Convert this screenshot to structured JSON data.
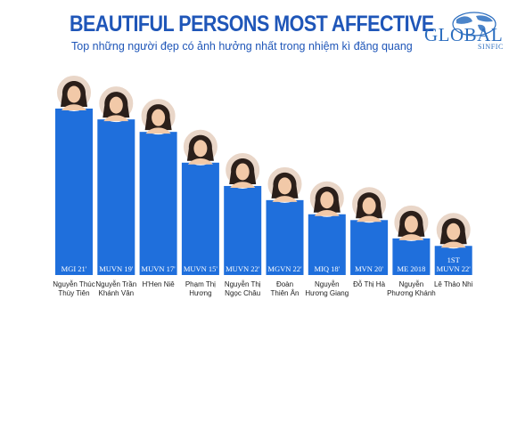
{
  "header": {
    "title": "BEAUTIFUL PERSONS MOST AFFECTIVE",
    "subtitle": "Top những người đẹp có ảnh hưởng nhất trong nhiệm kì đăng quang"
  },
  "logo": {
    "name": "GLOBAL",
    "sub": "SINFIC"
  },
  "colors": {
    "bar": "#1f6fdc",
    "title": "#1f56b8",
    "bar_label": "#ffffff",
    "name_label": "#222222"
  },
  "chart_data": {
    "type": "bar",
    "categories": [
      [
        "Nguyễn Thúc",
        "Thùy Tiên"
      ],
      [
        "Nguyễn Trần",
        "Khánh Vân"
      ],
      [
        "H'Hen Niê"
      ],
      [
        "Phạm Thị",
        "Hương"
      ],
      [
        "Nguyễn Thị",
        "Ngọc Châu"
      ],
      [
        "Đoàn",
        "Thiên Ân"
      ],
      [
        "Nguyễn",
        "Hương Giang"
      ],
      [
        "Đỗ Thị Hà"
      ],
      [
        "Nguyễn",
        "Phương Khánh"
      ],
      [
        "Lê Thảo Nhi"
      ]
    ],
    "bar_labels": [
      [
        "MGI 21'"
      ],
      [
        "MUVN 19'"
      ],
      [
        "MUVN 17'"
      ],
      [
        "MUVN 15'"
      ],
      [
        "MUVN 22'"
      ],
      [
        "MGVN 22'"
      ],
      [
        "MIQ 18'"
      ],
      [
        "MVN 20'"
      ],
      [
        "ME 2018"
      ],
      [
        "1ST",
        "MUVN 22'"
      ]
    ],
    "values": [
      100,
      93.5,
      86,
      67.5,
      53.5,
      45,
      36.5,
      33,
      22,
      17.5
    ],
    "ylim": [
      0,
      100
    ],
    "grid": false,
    "legend": "none",
    "portraits": "circular photo above each bar"
  }
}
